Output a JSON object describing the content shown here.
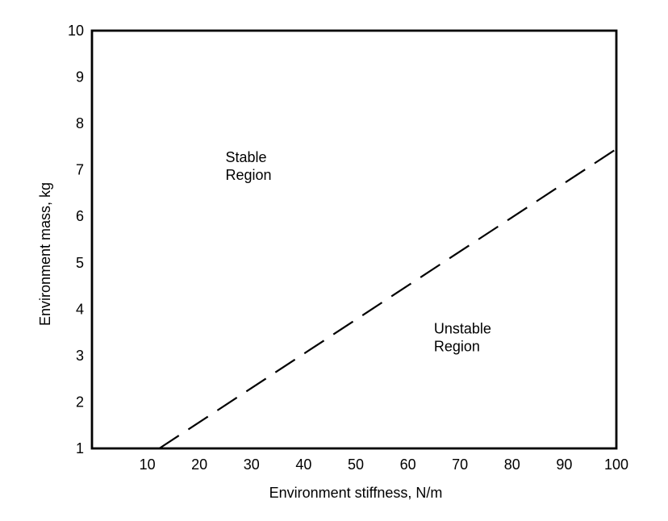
{
  "figure": {
    "background_color": "#ffffff",
    "stroke_color": "#000000"
  },
  "chart_data": {
    "type": "line",
    "title": "",
    "xlabel": "Environment stiffness, N/m",
    "ylabel": "Environment mass, kg",
    "xlim": [
      0,
      100
    ],
    "ylim": [
      1,
      10
    ],
    "x_ticks": [
      10,
      20,
      30,
      40,
      50,
      60,
      70,
      80,
      90,
      100
    ],
    "y_ticks": [
      1,
      2,
      3,
      4,
      5,
      6,
      7,
      8,
      9,
      10
    ],
    "grid": false,
    "legend": false,
    "frame": "full-box",
    "series": [
      {
        "name": "stability-boundary",
        "style": "dashed",
        "color": "#000000",
        "points": [
          [
            12.3,
            1.0
          ],
          [
            100,
            7.45
          ]
        ]
      }
    ],
    "annotations": [
      {
        "id": "stable-region",
        "lines": [
          "Stable",
          "Region"
        ],
        "x": 25,
        "y": 7.45,
        "anchor": "start"
      },
      {
        "id": "unstable-region",
        "lines": [
          "Unstable",
          "Region"
        ],
        "x": 65,
        "y": 3.75,
        "anchor": "start"
      }
    ]
  }
}
